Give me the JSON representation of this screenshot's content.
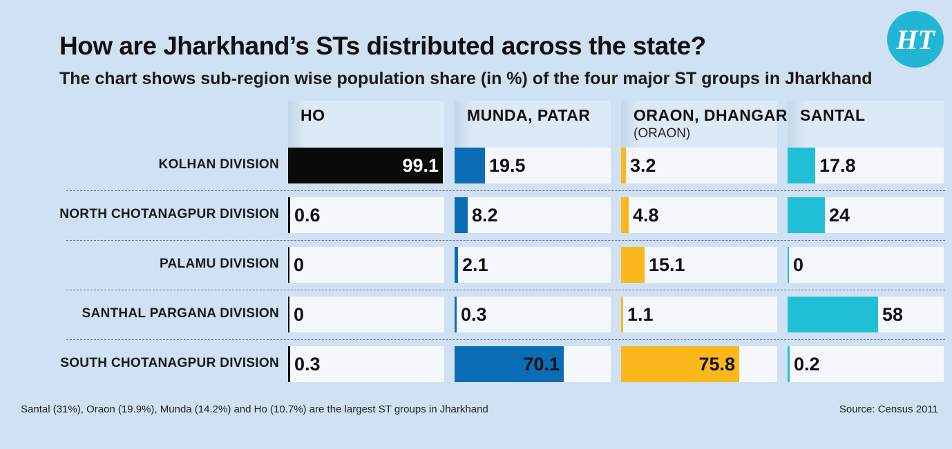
{
  "title": "How are Jharkhand’s STs distributed across the state?",
  "subtitle": "The chart shows sub-region wise population share (in %) of the four major ST groups in Jharkhand",
  "logo_text": "HT",
  "footnote": "Santal (31%), Oraon (19.9%), Munda (14.2%) and Ho (10.7%) are the largest ST groups in Jharkhand",
  "source": "Source: Census 2011",
  "chart_data": {
    "type": "bar",
    "categories": [
      "KOLHAN DIVISION",
      "NORTH CHOTANAGPUR DIVISION",
      "PALAMU DIVISION",
      "SANTHAL PARGANA DIVISION",
      "SOUTH CHOTANAGPUR DIVISION"
    ],
    "xlim": [
      0,
      100
    ],
    "series": [
      {
        "name": "HO",
        "sub": "",
        "color": "#0a0a0a",
        "values": [
          99.1,
          0.6,
          0,
          0,
          0.3
        ]
      },
      {
        "name": "MUNDA, PATAR",
        "sub": "",
        "color": "#0b6db5",
        "values": [
          19.5,
          8.2,
          2.1,
          0.3,
          70.1
        ]
      },
      {
        "name": "ORAON, DHANGAR",
        "sub": "(ORAON)",
        "color": "#fbb81c",
        "values": [
          3.2,
          4.8,
          15.1,
          1.1,
          75.8
        ]
      },
      {
        "name": "SANTAL",
        "sub": "",
        "color": "#21bfd6",
        "values": [
          17.8,
          24,
          0,
          58,
          0.2
        ]
      }
    ]
  }
}
